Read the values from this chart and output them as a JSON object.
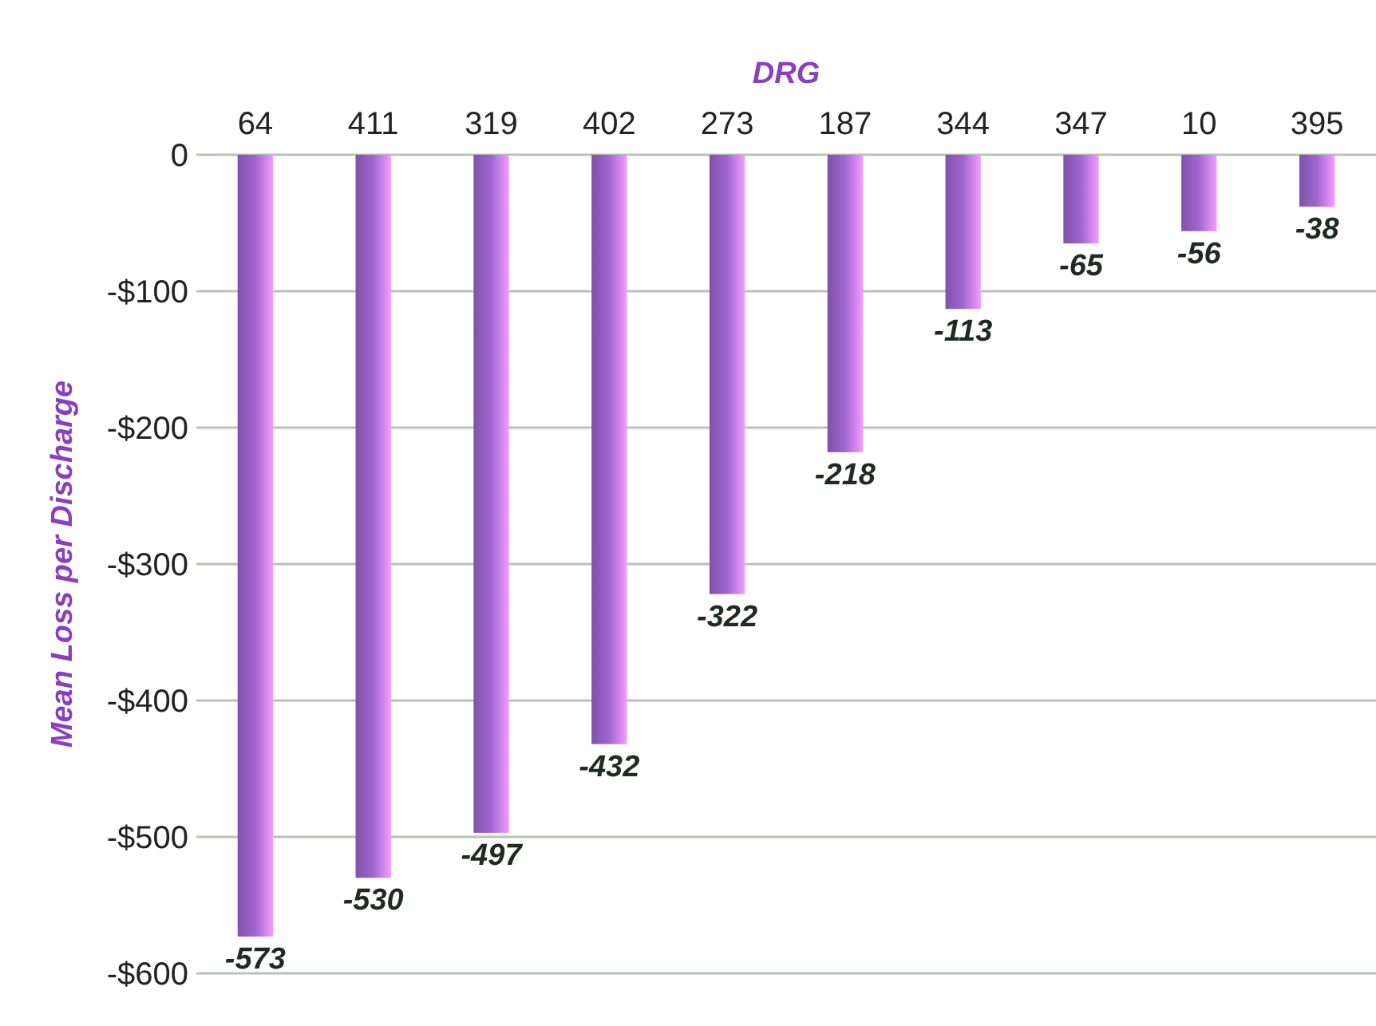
{
  "chart_data": {
    "type": "bar",
    "xlabel": "DRG",
    "ylabel": "Mean Loss per Discharge",
    "categories": [
      "64",
      "411",
      "319",
      "402",
      "273",
      "187",
      "344",
      "347",
      "10",
      "395"
    ],
    "values": [
      -573,
      -530,
      -497,
      -432,
      -322,
      -218,
      -113,
      -65,
      -56,
      -38
    ],
    "color": "#a066d0",
    "ylim": [
      -600,
      0
    ],
    "yticks": [
      0,
      {
        "value": -100,
        "label": "-$100"
      },
      {
        "value": -200,
        "label": "-$200"
      },
      {
        "value": -300,
        "label": "-$300"
      },
      {
        "value": -400,
        "label": "-$400"
      },
      {
        "value": -500,
        "label": "-$500"
      },
      {
        "value": -600,
        "label": "-$600"
      }
    ],
    "grid": "y",
    "data_labels": true
  }
}
